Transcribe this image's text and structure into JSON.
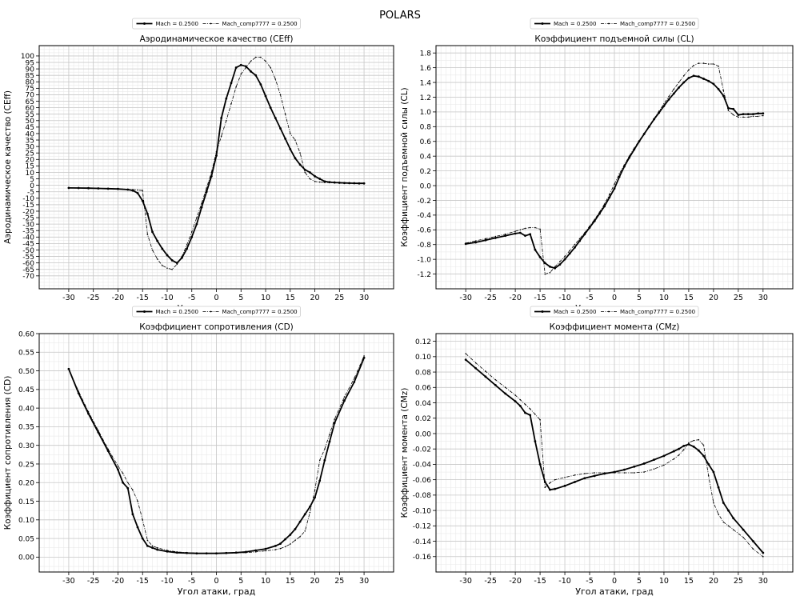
{
  "figure": {
    "title": "POLARS"
  },
  "chart_data": [
    {
      "type": "line",
      "title": "Аэродинамическое качество (CEff)",
      "xlabel": "Угол атаки, град",
      "ylabel": "Аэродинамическое качество (CEff)",
      "xlim": [
        -36,
        36
      ],
      "ylim": [
        -80,
        108
      ],
      "xticks": [
        -30,
        -25,
        -20,
        -15,
        -10,
        -5,
        0,
        5,
        10,
        15,
        20,
        25,
        30
      ],
      "yticks": [
        -70,
        -65,
        -60,
        -55,
        -50,
        -45,
        -40,
        -35,
        -30,
        -25,
        -20,
        -15,
        -10,
        -5,
        0,
        5,
        10,
        15,
        20,
        25,
        30,
        35,
        40,
        45,
        50,
        55,
        60,
        65,
        70,
        75,
        80,
        85,
        90,
        95,
        100
      ],
      "grid": true,
      "legend": "top-center",
      "series": [
        {
          "name": "Mach = 0.2500",
          "style": "solid",
          "x": [
            -30,
            -28,
            -26,
            -24,
            -22,
            -20,
            -18,
            -17,
            -16,
            -15,
            -14,
            -13,
            -12,
            -11,
            -10,
            -9,
            -8,
            -7,
            -6,
            -5,
            -4,
            -3,
            -2,
            -1,
            0,
            1,
            2,
            3,
            4,
            5,
            6,
            7,
            8,
            9,
            10,
            11,
            12,
            13,
            14,
            15,
            16,
            17,
            18,
            19,
            20,
            21,
            22,
            23,
            24,
            25,
            26,
            27,
            28,
            29,
            30
          ],
          "y": [
            -2,
            -2.1,
            -2.2,
            -2.4,
            -2.6,
            -2.8,
            -3.3,
            -4,
            -6,
            -12,
            -22,
            -36,
            -43,
            -49,
            -54,
            -58,
            -60,
            -56,
            -49,
            -40,
            -30,
            -17,
            -5,
            7,
            23,
            52,
            67,
            79,
            91,
            93,
            92,
            88,
            85,
            78,
            69,
            60,
            52,
            44,
            36,
            28,
            21,
            16,
            12,
            10,
            7,
            5,
            3,
            2.5,
            2.2,
            2,
            1.8,
            1.7,
            1.6,
            1.5,
            1.5
          ]
        },
        {
          "name": "Mach_comp7777 = 0.2500",
          "style": "dashdot",
          "x": [
            -30,
            -28,
            -26,
            -24,
            -22,
            -20,
            -18,
            -17,
            -16,
            -15,
            -14,
            -13,
            -12,
            -11,
            -10,
            -9,
            -8,
            -7,
            -6,
            -5,
            -4,
            -3,
            -2,
            -1,
            0,
            1,
            2,
            3,
            4,
            5,
            6,
            7,
            8,
            9,
            10,
            11,
            12,
            13,
            14,
            15,
            16,
            17,
            18,
            19,
            20,
            21,
            22,
            23,
            24,
            25,
            26,
            27,
            28,
            29,
            30
          ],
          "y": [
            -2,
            -2.1,
            -2.2,
            -2.3,
            -2.5,
            -2.7,
            -3,
            -3.3,
            -3.6,
            -4,
            -38,
            -50,
            -57,
            -62,
            -64,
            -65,
            -61,
            -55,
            -46,
            -36,
            -25,
            -14,
            -2,
            10,
            26,
            38,
            50,
            63,
            76,
            86,
            91,
            96,
            99,
            99,
            96,
            91,
            82,
            70,
            55,
            40,
            35,
            25,
            10,
            5,
            3,
            2.5,
            2.2,
            2,
            1.8,
            1.7,
            1.6,
            1.5,
            1.5,
            1.5,
            1.5
          ]
        }
      ]
    },
    {
      "type": "line",
      "title": "Коэффициент подъемной силы (CL)",
      "xlabel": "Угол атаки, град",
      "ylabel": "Коэффициент подъемной силы (CL)",
      "xlim": [
        -36,
        36
      ],
      "ylim": [
        -1.4,
        1.9
      ],
      "xticks": [
        -30,
        -25,
        -20,
        -15,
        -10,
        -5,
        0,
        5,
        10,
        15,
        20,
        25,
        30
      ],
      "yticks": [
        -1.2,
        -1.0,
        -0.8,
        -0.6,
        -0.4,
        -0.2,
        0.0,
        0.2,
        0.4,
        0.6,
        0.8,
        1.0,
        1.2,
        1.4,
        1.6,
        1.8
      ],
      "grid": true,
      "legend": "top-center",
      "series": [
        {
          "name": "Mach = 0.2500",
          "style": "solid",
          "x": [
            -30,
            -28,
            -26,
            -24,
            -22,
            -20,
            -19,
            -18,
            -17,
            -16,
            -15,
            -14,
            -13,
            -12,
            -11,
            -10,
            -9,
            -8,
            -7,
            -6,
            -5,
            -4,
            -3,
            -2,
            -1,
            0,
            1,
            2,
            3,
            4,
            5,
            6,
            7,
            8,
            9,
            10,
            11,
            12,
            13,
            14,
            15,
            16,
            17,
            18,
            19,
            20,
            21,
            22,
            23,
            24,
            25,
            26,
            27,
            28,
            29,
            30
          ],
          "y": [
            -0.79,
            -0.77,
            -0.74,
            -0.71,
            -0.68,
            -0.65,
            -0.64,
            -0.68,
            -0.66,
            -0.87,
            -0.97,
            -1.05,
            -1.1,
            -1.12,
            -1.07,
            -1.0,
            -0.92,
            -0.84,
            -0.75,
            -0.66,
            -0.57,
            -0.48,
            -0.38,
            -0.28,
            -0.16,
            -0.04,
            0.12,
            0.26,
            0.38,
            0.49,
            0.6,
            0.7,
            0.8,
            0.9,
            0.99,
            1.08,
            1.17,
            1.25,
            1.33,
            1.4,
            1.46,
            1.49,
            1.48,
            1.45,
            1.42,
            1.38,
            1.31,
            1.22,
            1.05,
            1.04,
            0.96,
            0.97,
            0.97,
            0.97,
            0.98,
            0.98
          ]
        },
        {
          "name": "Mach_comp7777 = 0.2500",
          "style": "dashdot",
          "x": [
            -30,
            -28,
            -26,
            -24,
            -22,
            -20,
            -19,
            -18,
            -17,
            -16,
            -15,
            -14,
            -13,
            -12,
            -11,
            -10,
            -9,
            -8,
            -7,
            -6,
            -5,
            -4,
            -3,
            -2,
            -1,
            0,
            1,
            2,
            3,
            4,
            5,
            6,
            7,
            8,
            9,
            10,
            11,
            12,
            13,
            14,
            15,
            16,
            17,
            18,
            19,
            20,
            21,
            22,
            23,
            24,
            25,
            26,
            27,
            28,
            29,
            30
          ],
          "y": [
            -0.78,
            -0.75,
            -0.72,
            -0.69,
            -0.66,
            -0.62,
            -0.6,
            -0.58,
            -0.57,
            -0.57,
            -0.59,
            -1.2,
            -1.18,
            -1.1,
            -1.03,
            -0.96,
            -0.88,
            -0.8,
            -0.72,
            -0.64,
            -0.55,
            -0.46,
            -0.36,
            -0.25,
            -0.12,
            0.02,
            0.16,
            0.28,
            0.4,
            0.51,
            0.61,
            0.71,
            0.81,
            0.91,
            1.01,
            1.11,
            1.21,
            1.31,
            1.4,
            1.49,
            1.57,
            1.63,
            1.66,
            1.66,
            1.65,
            1.65,
            1.62,
            1.29,
            1.02,
            0.96,
            0.93,
            0.93,
            0.93,
            0.94,
            0.94,
            0.95
          ]
        }
      ]
    },
    {
      "type": "line",
      "title": "Коэффициент сопротивления (CD)",
      "xlabel": "Угол атаки, град",
      "ylabel": "Коэффициент сопротивления (CD)",
      "xlim": [
        -36,
        36
      ],
      "ylim": [
        -0.04,
        0.6
      ],
      "xticks": [
        -30,
        -25,
        -20,
        -15,
        -10,
        -5,
        0,
        5,
        10,
        15,
        20,
        25,
        30
      ],
      "yticks": [
        0.0,
        0.05,
        0.1,
        0.15,
        0.2,
        0.25,
        0.3,
        0.35,
        0.4,
        0.45,
        0.5,
        0.55,
        0.6
      ],
      "grid": true,
      "legend": "top-center",
      "series": [
        {
          "name": "Mach = 0.2500",
          "style": "solid",
          "x": [
            -30,
            -28,
            -26,
            -24,
            -22,
            -20,
            -19,
            -18,
            -17,
            -16,
            -15,
            -14,
            -13,
            -12,
            -10,
            -8,
            -6,
            -4,
            -2,
            0,
            2,
            4,
            6,
            8,
            10,
            12,
            13,
            14,
            15,
            16,
            17,
            18,
            19,
            20,
            21,
            22,
            23,
            24,
            26,
            28,
            30
          ],
          "y": [
            0.505,
            0.44,
            0.385,
            0.335,
            0.285,
            0.235,
            0.2,
            0.185,
            0.115,
            0.08,
            0.05,
            0.03,
            0.025,
            0.02,
            0.015,
            0.012,
            0.011,
            0.01,
            0.01,
            0.01,
            0.011,
            0.012,
            0.014,
            0.018,
            0.022,
            0.03,
            0.036,
            0.048,
            0.06,
            0.075,
            0.095,
            0.115,
            0.135,
            0.16,
            0.205,
            0.26,
            0.31,
            0.36,
            0.42,
            0.47,
            0.535
          ]
        },
        {
          "name": "Mach_comp7777 = 0.2500",
          "style": "dashdot",
          "x": [
            -30,
            -28,
            -26,
            -24,
            -22,
            -20,
            -19,
            -18,
            -17,
            -16,
            -15,
            -14,
            -13,
            -12,
            -10,
            -8,
            -6,
            -4,
            -2,
            0,
            2,
            4,
            6,
            8,
            10,
            12,
            13,
            14,
            15,
            16,
            17,
            18,
            19,
            20,
            21,
            22,
            23,
            24,
            26,
            28,
            30
          ],
          "y": [
            0.505,
            0.445,
            0.39,
            0.34,
            0.29,
            0.245,
            0.225,
            0.2,
            0.18,
            0.15,
            0.1,
            0.045,
            0.03,
            0.025,
            0.018,
            0.014,
            0.012,
            0.011,
            0.01,
            0.01,
            0.01,
            0.011,
            0.012,
            0.014,
            0.017,
            0.02,
            0.023,
            0.028,
            0.035,
            0.045,
            0.055,
            0.07,
            0.12,
            0.18,
            0.26,
            0.29,
            0.33,
            0.37,
            0.43,
            0.48,
            0.54
          ]
        }
      ]
    },
    {
      "type": "line",
      "title": "Коэффициент момента (CMz)",
      "xlabel": "Угол атаки, град",
      "ylabel": "Коэффициент момента (CMz)",
      "xlim": [
        -36,
        36
      ],
      "ylim": [
        -0.18,
        0.13
      ],
      "xticks": [
        -30,
        -25,
        -20,
        -15,
        -10,
        -5,
        0,
        5,
        10,
        15,
        20,
        25,
        30
      ],
      "yticks": [
        -0.16,
        -0.14,
        -0.12,
        -0.1,
        -0.08,
        -0.06,
        -0.04,
        -0.02,
        0.0,
        0.02,
        0.04,
        0.06,
        0.08,
        0.1,
        0.12
      ],
      "grid": true,
      "legend": "top-center",
      "series": [
        {
          "name": "Mach = 0.2500",
          "style": "solid",
          "x": [
            -30,
            -28,
            -26,
            -24,
            -22,
            -20,
            -19,
            -18,
            -17,
            -16,
            -15,
            -14,
            -13,
            -12,
            -10,
            -8,
            -6,
            -4,
            -2,
            0,
            2,
            4,
            6,
            8,
            10,
            12,
            13,
            14,
            15,
            16,
            17,
            18,
            19,
            20,
            21,
            22,
            23,
            24,
            26,
            28,
            30
          ],
          "y": [
            0.096,
            0.085,
            0.074,
            0.063,
            0.052,
            0.042,
            0.036,
            0.027,
            0.024,
            -0.01,
            -0.04,
            -0.063,
            -0.073,
            -0.072,
            -0.068,
            -0.063,
            -0.058,
            -0.055,
            -0.052,
            -0.05,
            -0.047,
            -0.043,
            -0.039,
            -0.034,
            -0.029,
            -0.023,
            -0.02,
            -0.016,
            -0.014,
            -0.017,
            -0.022,
            -0.029,
            -0.04,
            -0.05,
            -0.07,
            -0.09,
            -0.1,
            -0.11,
            -0.125,
            -0.14,
            -0.155
          ]
        },
        {
          "name": "Mach_comp7777 = 0.2500",
          "style": "dashdot",
          "x": [
            -30,
            -28,
            -26,
            -24,
            -22,
            -20,
            -19,
            -18,
            -17,
            -16,
            -15,
            -14,
            -13,
            -12,
            -10,
            -8,
            -6,
            -4,
            -2,
            0,
            2,
            4,
            6,
            8,
            10,
            12,
            13,
            14,
            15,
            16,
            17,
            18,
            19,
            20,
            21,
            22,
            23,
            24,
            26,
            28,
            30
          ],
          "y": [
            0.104,
            0.092,
            0.081,
            0.07,
            0.06,
            0.05,
            0.044,
            0.038,
            0.032,
            0.025,
            0.018,
            -0.07,
            -0.064,
            -0.06,
            -0.057,
            -0.054,
            -0.052,
            -0.051,
            -0.051,
            -0.051,
            -0.051,
            -0.051,
            -0.05,
            -0.046,
            -0.041,
            -0.033,
            -0.028,
            -0.021,
            -0.012,
            -0.009,
            -0.008,
            -0.015,
            -0.055,
            -0.09,
            -0.105,
            -0.115,
            -0.12,
            -0.125,
            -0.135,
            -0.15,
            -0.16
          ]
        }
      ]
    }
  ]
}
